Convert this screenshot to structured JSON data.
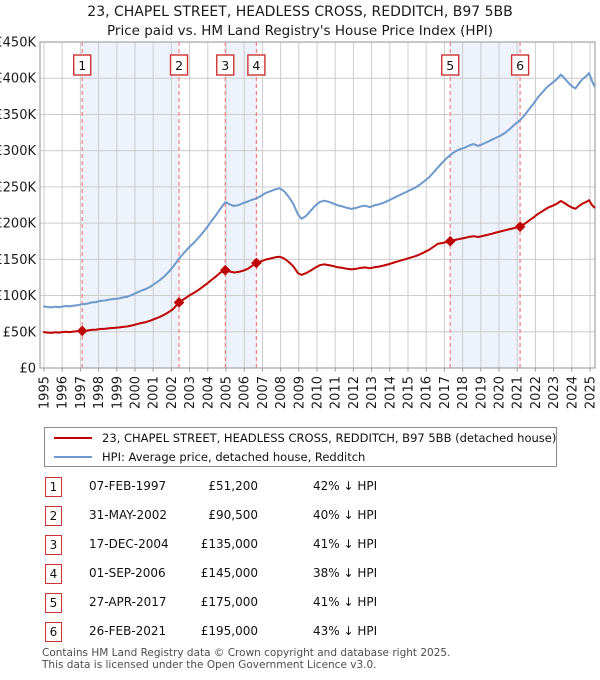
{
  "page": {
    "title_line1": "23, CHAPEL STREET, HEADLESS CROSS, REDDITCH, B97 5BB",
    "title_line2": "Price paid vs. HM Land Registry's House Price Index (HPI)"
  },
  "legend": {
    "series1": "23, CHAPEL STREET, HEADLESS CROSS, REDDITCH, B97 5BB (detached house)",
    "series2": "HPI: Average price, detached house, Redditch"
  },
  "footer": {
    "line1": "Contains HM Land Registry data © Crown copyright and database right 2025.",
    "line2": "This data is licensed under the Open Government Licence v3.0."
  },
  "chart_data": {
    "type": "line",
    "title": "23, CHAPEL STREET, HEADLESS CROSS, REDDITCH, B97 5BB",
    "subtitle": "Price paid vs. HM Land Registry's House Price Index (HPI)",
    "units": "GBP thousands",
    "xlim": [
      1995,
      2025.5
    ],
    "ylim": [
      0,
      450
    ],
    "x_ticks": [
      1995,
      1996,
      1997,
      1998,
      1999,
      2000,
      2001,
      2002,
      2003,
      2004,
      2005,
      2006,
      2007,
      2008,
      2009,
      2010,
      2011,
      2012,
      2013,
      2014,
      2015,
      2016,
      2017,
      2018,
      2019,
      2020,
      2021,
      2022,
      2023,
      2024,
      2025
    ],
    "y_ticks": [
      {
        "v": 0,
        "label": "£0"
      },
      {
        "v": 50,
        "label": "£50K"
      },
      {
        "v": 100,
        "label": "£100K"
      },
      {
        "v": 150,
        "label": "£150K"
      },
      {
        "v": 200,
        "label": "£200K"
      },
      {
        "v": 250,
        "label": "£250K"
      },
      {
        "v": 300,
        "label": "£300K"
      },
      {
        "v": 350,
        "label": "£350K"
      },
      {
        "v": 400,
        "label": "£400K"
      },
      {
        "v": 450,
        "label": "£450K"
      }
    ],
    "colors": {
      "property": "#c00000",
      "hpi": "#6d99cc",
      "grid": "#cccccc",
      "frame": "#a3a3a3",
      "tick": "#9a9a9a",
      "band": "#eef2fb",
      "sale_line": "#f58080",
      "flag_border": "#cc3333",
      "text": "#1a1a1a"
    },
    "bands": [
      [
        1997.1,
        2002.42
      ],
      [
        2004.96,
        2006.67
      ],
      [
        2017.32,
        2021.16
      ]
    ],
    "sales": [
      {
        "n": "1",
        "x": 1997.1,
        "y": 51.2,
        "date": "07-FEB-1997",
        "price_label": "£51,200",
        "hpi_diff": "42% ↓ HPI"
      },
      {
        "n": "2",
        "x": 2002.42,
        "y": 90.5,
        "date": "31-MAY-2002",
        "price_label": "£90,500",
        "hpi_diff": "40% ↓ HPI"
      },
      {
        "n": "3",
        "x": 2004.96,
        "y": 135,
        "date": "17-DEC-2004",
        "price_label": "£135,000",
        "hpi_diff": "41% ↓ HPI"
      },
      {
        "n": "4",
        "x": 2006.67,
        "y": 145,
        "date": "01-SEP-2006",
        "price_label": "£145,000",
        "hpi_diff": "38% ↓ HPI"
      },
      {
        "n": "5",
        "x": 2017.32,
        "y": 175,
        "date": "27-APR-2017",
        "price_label": "£175,000",
        "hpi_diff": "41% ↓ HPI"
      },
      {
        "n": "6",
        "x": 2021.16,
        "y": 195,
        "date": "26-FEB-2021",
        "price_label": "£195,000",
        "hpi_diff": "43% ↓ HPI"
      }
    ],
    "series": [
      {
        "name": "HPI: Average price, detached house, Redditch",
        "color_key": "hpi",
        "points": [
          [
            1995.0,
            85
          ],
          [
            1995.2,
            84.2
          ],
          [
            1995.4,
            83.6
          ],
          [
            1995.6,
            84.6
          ],
          [
            1995.8,
            84.0
          ],
          [
            1996.0,
            84.8
          ],
          [
            1996.2,
            85.6
          ],
          [
            1996.4,
            85.0
          ],
          [
            1996.6,
            86.0
          ],
          [
            1996.8,
            86.6
          ],
          [
            1997.1,
            88.0
          ],
          [
            1997.35,
            88.6
          ],
          [
            1997.6,
            90.4
          ],
          [
            1997.85,
            91.0
          ],
          [
            1998.1,
            92.6
          ],
          [
            1998.35,
            93.2
          ],
          [
            1998.6,
            94.6
          ],
          [
            1998.85,
            95.2
          ],
          [
            1999.1,
            96.0
          ],
          [
            1999.35,
            97.4
          ],
          [
            1999.6,
            98.6
          ],
          [
            1999.85,
            101.0
          ],
          [
            2000.1,
            104.0
          ],
          [
            2000.35,
            106.8
          ],
          [
            2000.6,
            109.0
          ],
          [
            2000.85,
            112.4
          ],
          [
            2001.1,
            116.8
          ],
          [
            2001.35,
            121.0
          ],
          [
            2001.6,
            126.2
          ],
          [
            2001.85,
            132.8
          ],
          [
            2002.1,
            140.0
          ],
          [
            2002.42,
            151.0
          ],
          [
            2002.7,
            159.0
          ],
          [
            2002.95,
            166.0
          ],
          [
            2003.2,
            172.0
          ],
          [
            2003.45,
            178.8
          ],
          [
            2003.7,
            186.0
          ],
          [
            2003.95,
            194.0
          ],
          [
            2004.2,
            202.8
          ],
          [
            2004.45,
            211.0
          ],
          [
            2004.7,
            220.0
          ],
          [
            2004.96,
            229.0
          ],
          [
            2005.2,
            226.0
          ],
          [
            2005.45,
            223.6
          ],
          [
            2005.7,
            225.0
          ],
          [
            2005.95,
            227.8
          ],
          [
            2006.2,
            229.8
          ],
          [
            2006.45,
            232.4
          ],
          [
            2006.67,
            234.0
          ],
          [
            2006.95,
            238.0
          ],
          [
            2007.2,
            241.8
          ],
          [
            2007.45,
            244.0
          ],
          [
            2007.7,
            246.6
          ],
          [
            2007.95,
            248.0
          ],
          [
            2008.2,
            244.0
          ],
          [
            2008.45,
            236.0
          ],
          [
            2008.7,
            226.6
          ],
          [
            2008.95,
            212.0
          ],
          [
            2009.15,
            206.0
          ],
          [
            2009.4,
            210.0
          ],
          [
            2009.65,
            217.0
          ],
          [
            2009.9,
            224.0
          ],
          [
            2010.15,
            229.0
          ],
          [
            2010.4,
            231.0
          ],
          [
            2010.65,
            229.4
          ],
          [
            2010.9,
            227.0
          ],
          [
            2011.15,
            224.4
          ],
          [
            2011.4,
            223.0
          ],
          [
            2011.65,
            221.0
          ],
          [
            2011.9,
            219.6
          ],
          [
            2012.15,
            221.0
          ],
          [
            2012.4,
            223.0
          ],
          [
            2012.65,
            224.0
          ],
          [
            2012.9,
            222.0
          ],
          [
            2013.15,
            224.4
          ],
          [
            2013.4,
            226.0
          ],
          [
            2013.65,
            228.0
          ],
          [
            2013.9,
            230.8
          ],
          [
            2014.15,
            233.8
          ],
          [
            2014.4,
            237.0
          ],
          [
            2014.65,
            240.0
          ],
          [
            2014.9,
            243.0
          ],
          [
            2015.15,
            246.0
          ],
          [
            2015.4,
            249.0
          ],
          [
            2015.65,
            253.0
          ],
          [
            2015.9,
            258.0
          ],
          [
            2016.15,
            263.0
          ],
          [
            2016.4,
            270.0
          ],
          [
            2016.65,
            277.0
          ],
          [
            2016.9,
            284.0
          ],
          [
            2017.1,
            289.0
          ],
          [
            2017.32,
            294.0
          ],
          [
            2017.6,
            299.0
          ],
          [
            2017.85,
            302.0
          ],
          [
            2018.1,
            304.0
          ],
          [
            2018.35,
            307.0
          ],
          [
            2018.6,
            309.0
          ],
          [
            2018.85,
            306.6
          ],
          [
            2019.1,
            309.0
          ],
          [
            2019.35,
            312.0
          ],
          [
            2019.6,
            315.0
          ],
          [
            2019.85,
            318.0
          ],
          [
            2020.1,
            321.0
          ],
          [
            2020.35,
            325.0
          ],
          [
            2020.6,
            330.0
          ],
          [
            2020.85,
            336.0
          ],
          [
            2021.16,
            342.0
          ],
          [
            2021.4,
            349.0
          ],
          [
            2021.65,
            357.0
          ],
          [
            2021.9,
            365.0
          ],
          [
            2022.15,
            374.0
          ],
          [
            2022.4,
            381.0
          ],
          [
            2022.65,
            388.0
          ],
          [
            2022.9,
            393.0
          ],
          [
            2023.15,
            398.0
          ],
          [
            2023.4,
            405.0
          ],
          [
            2023.6,
            400.0
          ],
          [
            2023.8,
            394.0
          ],
          [
            2024.0,
            389.0
          ],
          [
            2024.2,
            386.0
          ],
          [
            2024.4,
            393.0
          ],
          [
            2024.6,
            399.0
          ],
          [
            2024.8,
            403.0
          ],
          [
            2024.95,
            407.0
          ],
          [
            2025.1,
            397.0
          ],
          [
            2025.25,
            389.0
          ]
        ]
      },
      {
        "name": "23, CHAPEL STREET, HEADLESS CROSS, REDDITCH, B97 5BB (detached house)",
        "color_key": "property",
        "points": [
          [
            1995.0,
            49.6
          ],
          [
            1995.2,
            48.9
          ],
          [
            1995.4,
            48.4
          ],
          [
            1995.6,
            49.3
          ],
          [
            1995.8,
            48.8
          ],
          [
            1996.0,
            49.5
          ],
          [
            1996.2,
            50.1
          ],
          [
            1996.4,
            49.6
          ],
          [
            1996.6,
            50.3
          ],
          [
            1996.8,
            50.8
          ],
          [
            1997.1,
            51.2
          ],
          [
            1997.35,
            51.6
          ],
          [
            1997.6,
            52.6
          ],
          [
            1997.85,
            53.0
          ],
          [
            1998.1,
            53.8
          ],
          [
            1998.35,
            54.2
          ],
          [
            1998.6,
            55.0
          ],
          [
            1998.85,
            55.4
          ],
          [
            1999.1,
            55.9
          ],
          [
            1999.35,
            56.7
          ],
          [
            1999.6,
            57.4
          ],
          [
            1999.85,
            58.8
          ],
          [
            2000.1,
            60.5
          ],
          [
            2000.35,
            62.1
          ],
          [
            2000.6,
            63.4
          ],
          [
            2000.85,
            65.4
          ],
          [
            2001.1,
            67.9
          ],
          [
            2001.35,
            70.4
          ],
          [
            2001.6,
            73.4
          ],
          [
            2001.85,
            77.2
          ],
          [
            2002.1,
            81.4
          ],
          [
            2002.42,
            90.5
          ],
          [
            2002.7,
            95.3
          ],
          [
            2002.95,
            99.5
          ],
          [
            2003.2,
            103.1
          ],
          [
            2003.45,
            107.1
          ],
          [
            2003.7,
            111.5
          ],
          [
            2003.95,
            116.3
          ],
          [
            2004.2,
            121.5
          ],
          [
            2004.45,
            126.4
          ],
          [
            2004.7,
            131.8
          ],
          [
            2004.96,
            135.0
          ],
          [
            2005.2,
            133.2
          ],
          [
            2005.45,
            131.8
          ],
          [
            2005.7,
            132.6
          ],
          [
            2005.95,
            134.3
          ],
          [
            2006.2,
            136.9
          ],
          [
            2006.45,
            141.2
          ],
          [
            2006.67,
            145.0
          ],
          [
            2006.95,
            147.4
          ],
          [
            2007.2,
            149.8
          ],
          [
            2007.45,
            151.2
          ],
          [
            2007.7,
            152.8
          ],
          [
            2007.95,
            153.7
          ],
          [
            2008.2,
            151.2
          ],
          [
            2008.45,
            146.3
          ],
          [
            2008.7,
            140.4
          ],
          [
            2008.95,
            131.0
          ],
          [
            2009.15,
            128.5
          ],
          [
            2009.4,
            131.0
          ],
          [
            2009.65,
            134.5
          ],
          [
            2009.9,
            138.5
          ],
          [
            2010.15,
            141.9
          ],
          [
            2010.4,
            143.1
          ],
          [
            2010.65,
            142.1
          ],
          [
            2010.9,
            140.7
          ],
          [
            2011.15,
            139.0
          ],
          [
            2011.4,
            138.2
          ],
          [
            2011.65,
            137.0
          ],
          [
            2011.9,
            136.1
          ],
          [
            2012.15,
            137.0
          ],
          [
            2012.4,
            138.2
          ],
          [
            2012.65,
            138.8
          ],
          [
            2012.9,
            137.6
          ],
          [
            2013.15,
            139.0
          ],
          [
            2013.4,
            140.0
          ],
          [
            2013.65,
            141.3
          ],
          [
            2013.9,
            143.0
          ],
          [
            2014.15,
            144.9
          ],
          [
            2014.4,
            146.9
          ],
          [
            2014.65,
            148.7
          ],
          [
            2014.9,
            150.6
          ],
          [
            2015.15,
            152.4
          ],
          [
            2015.4,
            154.3
          ],
          [
            2015.65,
            156.8
          ],
          [
            2015.9,
            159.9
          ],
          [
            2016.15,
            163.0
          ],
          [
            2016.4,
            167.3
          ],
          [
            2016.65,
            171.6
          ],
          [
            2016.9,
            172.5
          ],
          [
            2017.1,
            173.8
          ],
          [
            2017.32,
            175.0
          ],
          [
            2017.6,
            176.8
          ],
          [
            2017.85,
            178.2
          ],
          [
            2018.1,
            179.4
          ],
          [
            2018.35,
            180.9
          ],
          [
            2018.6,
            182.0
          ],
          [
            2018.85,
            180.8
          ],
          [
            2019.1,
            182.2
          ],
          [
            2019.35,
            183.7
          ],
          [
            2019.6,
            185.3
          ],
          [
            2019.85,
            187.0
          ],
          [
            2020.1,
            188.6
          ],
          [
            2020.35,
            190.2
          ],
          [
            2020.6,
            191.8
          ],
          [
            2020.85,
            193.3
          ],
          [
            2021.16,
            195.0
          ],
          [
            2021.4,
            198.9
          ],
          [
            2021.65,
            203.4
          ],
          [
            2021.9,
            207.9
          ],
          [
            2022.15,
            212.8
          ],
          [
            2022.4,
            216.7
          ],
          [
            2022.65,
            220.7
          ],
          [
            2022.9,
            223.5
          ],
          [
            2023.15,
            226.3
          ],
          [
            2023.4,
            230.5
          ],
          [
            2023.6,
            227.7
          ],
          [
            2023.8,
            224.3
          ],
          [
            2024.0,
            221.5
          ],
          [
            2024.2,
            219.8
          ],
          [
            2024.4,
            223.7
          ],
          [
            2024.6,
            227.1
          ],
          [
            2024.8,
            229.4
          ],
          [
            2024.95,
            231.6
          ],
          [
            2025.1,
            225.3
          ],
          [
            2025.25,
            221.5
          ]
        ]
      }
    ]
  }
}
